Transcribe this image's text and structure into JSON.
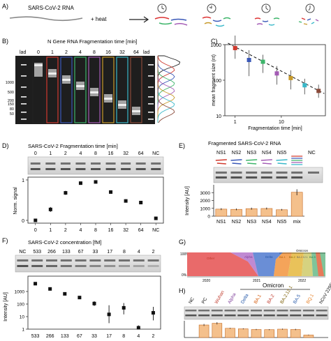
{
  "panels": {
    "A": {
      "letter": "A)",
      "title": "SARS-CoV-2 RNA",
      "plus_heat": "+ heat"
    },
    "B": {
      "letter": "B)",
      "title": "N Gene RNA Fragmentation time [min]",
      "lad": "lad",
      "times": [
        "0",
        "1",
        "2",
        "4",
        "8",
        "16",
        "32",
        "64"
      ],
      "ladder_labels": [
        "1000",
        "500",
        "200",
        "150",
        "80",
        "50"
      ]
    },
    "C": {
      "letter": "C)"
    },
    "D": {
      "letter": "D)",
      "title": "SARS-CoV-2 Fragmentation time [min]",
      "lanes": [
        "0",
        "1",
        "2",
        "4",
        "8",
        "16",
        "32",
        "64",
        "NC"
      ]
    },
    "E": {
      "letter": "E)",
      "title": "Fragmented SARS-CoV-2 RNA",
      "lanes": [
        "NS1",
        "NS2",
        "NS3",
        "NS4",
        "NS5",
        "mix"
      ],
      "nc": "NC"
    },
    "F": {
      "letter": "F)",
      "title": "SARS-CoV-2 concentration [fM]",
      "lanes": [
        "NC",
        "533",
        "266",
        "133",
        "67",
        "33",
        "17",
        "8",
        "4",
        "2"
      ]
    },
    "G": {
      "letter": "G)",
      "top_label": "100%",
      "bottom_label": "0%",
      "years": [
        "2020",
        "2021",
        "2022"
      ],
      "variants": [
        "Other",
        "Alpha",
        "Delta",
        "BA.1",
        "BA.2",
        "BA.2.12.1",
        "BA.5",
        "Omicron"
      ]
    },
    "H": {
      "letter": "H)",
      "omicron": "Omicron",
      "lanes": [
        "NC",
        "PC",
        "Wuhan",
        "Alpha",
        "Delta",
        "BA.1",
        "BA.2",
        "BA.2.12.1",
        "BA.5",
        "BQ.1",
        "hCoV 229E"
      ]
    }
  },
  "chart_data": [
    {
      "panel": "C",
      "type": "scatter",
      "title": "",
      "xlabel": "Fragmentation time [min]",
      "ylabel": "mean fragment size (nt)",
      "xscale": "log",
      "yscale": "log",
      "xlim": [
        0.6,
        90
      ],
      "ylim": [
        10,
        1000
      ],
      "xticks": [
        "1",
        "10"
      ],
      "yticks": [
        "10",
        "100",
        "1000"
      ],
      "x": [
        1,
        2,
        4,
        8,
        16,
        32,
        64
      ],
      "y": [
        800,
        370,
        330,
        155,
        115,
        72,
        50
      ],
      "yerr": [
        [
          400,
          1800
        ],
        [
          130,
          700
        ],
        [
          160,
          520
        ],
        [
          75,
          250
        ],
        [
          55,
          190
        ],
        [
          40,
          110
        ],
        [
          32,
          75
        ]
      ],
      "fit": "dashed",
      "colors": [
        "#d03a2e",
        "#3a58b8",
        "#3db56a",
        "#a35bb5",
        "#c79a2a",
        "#38b8c9",
        "#8a4a3a"
      ]
    },
    {
      "panel": "D",
      "type": "scatter",
      "title": "",
      "xlabel": "",
      "ylabel": "Norm. signal",
      "categories": [
        "0",
        "1",
        "2",
        "4",
        "8",
        "16",
        "32",
        "64",
        "NC"
      ],
      "values": [
        0.0,
        0.27,
        0.68,
        0.92,
        0.95,
        0.7,
        0.48,
        0.44,
        0.05
      ],
      "errors": [
        0.04,
        0.06,
        0.05,
        0.03,
        0.02,
        0.03,
        0.04,
        0.03,
        0.04
      ],
      "ylim": [
        0,
        1
      ],
      "yticks": [
        "0",
        "1"
      ]
    },
    {
      "panel": "E",
      "type": "bar",
      "title": "",
      "xlabel": "",
      "ylabel": "Intensity [AU]",
      "categories": [
        "NS1",
        "NS2",
        "NS3",
        "NS4",
        "NS5",
        "mix"
      ],
      "values": [
        900,
        870,
        960,
        980,
        820,
        3050
      ],
      "errors": [
        120,
        110,
        130,
        120,
        100,
        380
      ],
      "ylim": [
        0,
        4000
      ],
      "yticks": [
        "0",
        "1000",
        "2000",
        "3000"
      ]
    },
    {
      "panel": "F",
      "type": "scatter",
      "title": "",
      "xlabel": "",
      "ylabel": "Intensity [AU]",
      "yscale": "log",
      "categories": [
        "533",
        "266",
        "133",
        "67",
        "33",
        "17",
        "8",
        "4",
        "2"
      ],
      "values": [
        4200,
        1600,
        650,
        330,
        110,
        15,
        50,
        0.8,
        20
      ],
      "errors": [
        [
          3800,
          4600
        ],
        [
          1400,
          1800
        ],
        [
          550,
          770
        ],
        [
          250,
          420
        ],
        [
          70,
          170
        ],
        [
          3,
          80
        ],
        [
          15,
          120
        ],
        [
          0.3,
          2
        ],
        [
          5,
          60
        ]
      ],
      "ylim": [
        1,
        10000
      ],
      "yticks": [
        "1",
        "10",
        "100",
        "1000"
      ]
    },
    {
      "panel": "H",
      "type": "bar",
      "title": "",
      "xlabel": "",
      "ylabel": "",
      "categories": [
        "NC",
        "PC",
        "Wuhan",
        "Alpha",
        "Delta",
        "BA.1",
        "BA.2",
        "BA.2.12.1",
        "BA.5",
        "BQ.1",
        "hCoV 229E"
      ],
      "values": [
        0,
        0.75,
        0.85,
        0.55,
        0.52,
        0.48,
        0.47,
        0.5,
        0.48,
        0.15,
        0
      ],
      "errors": [
        0,
        0.06,
        0.07,
        0.03,
        0.03,
        0.03,
        0.03,
        0.03,
        0.04,
        0.02,
        0
      ],
      "ylim": [
        0,
        1
      ]
    }
  ],
  "colors": {
    "accent_orange": "#f4c08c",
    "bar_stroke": "#c46a22",
    "fit": "#111111"
  }
}
